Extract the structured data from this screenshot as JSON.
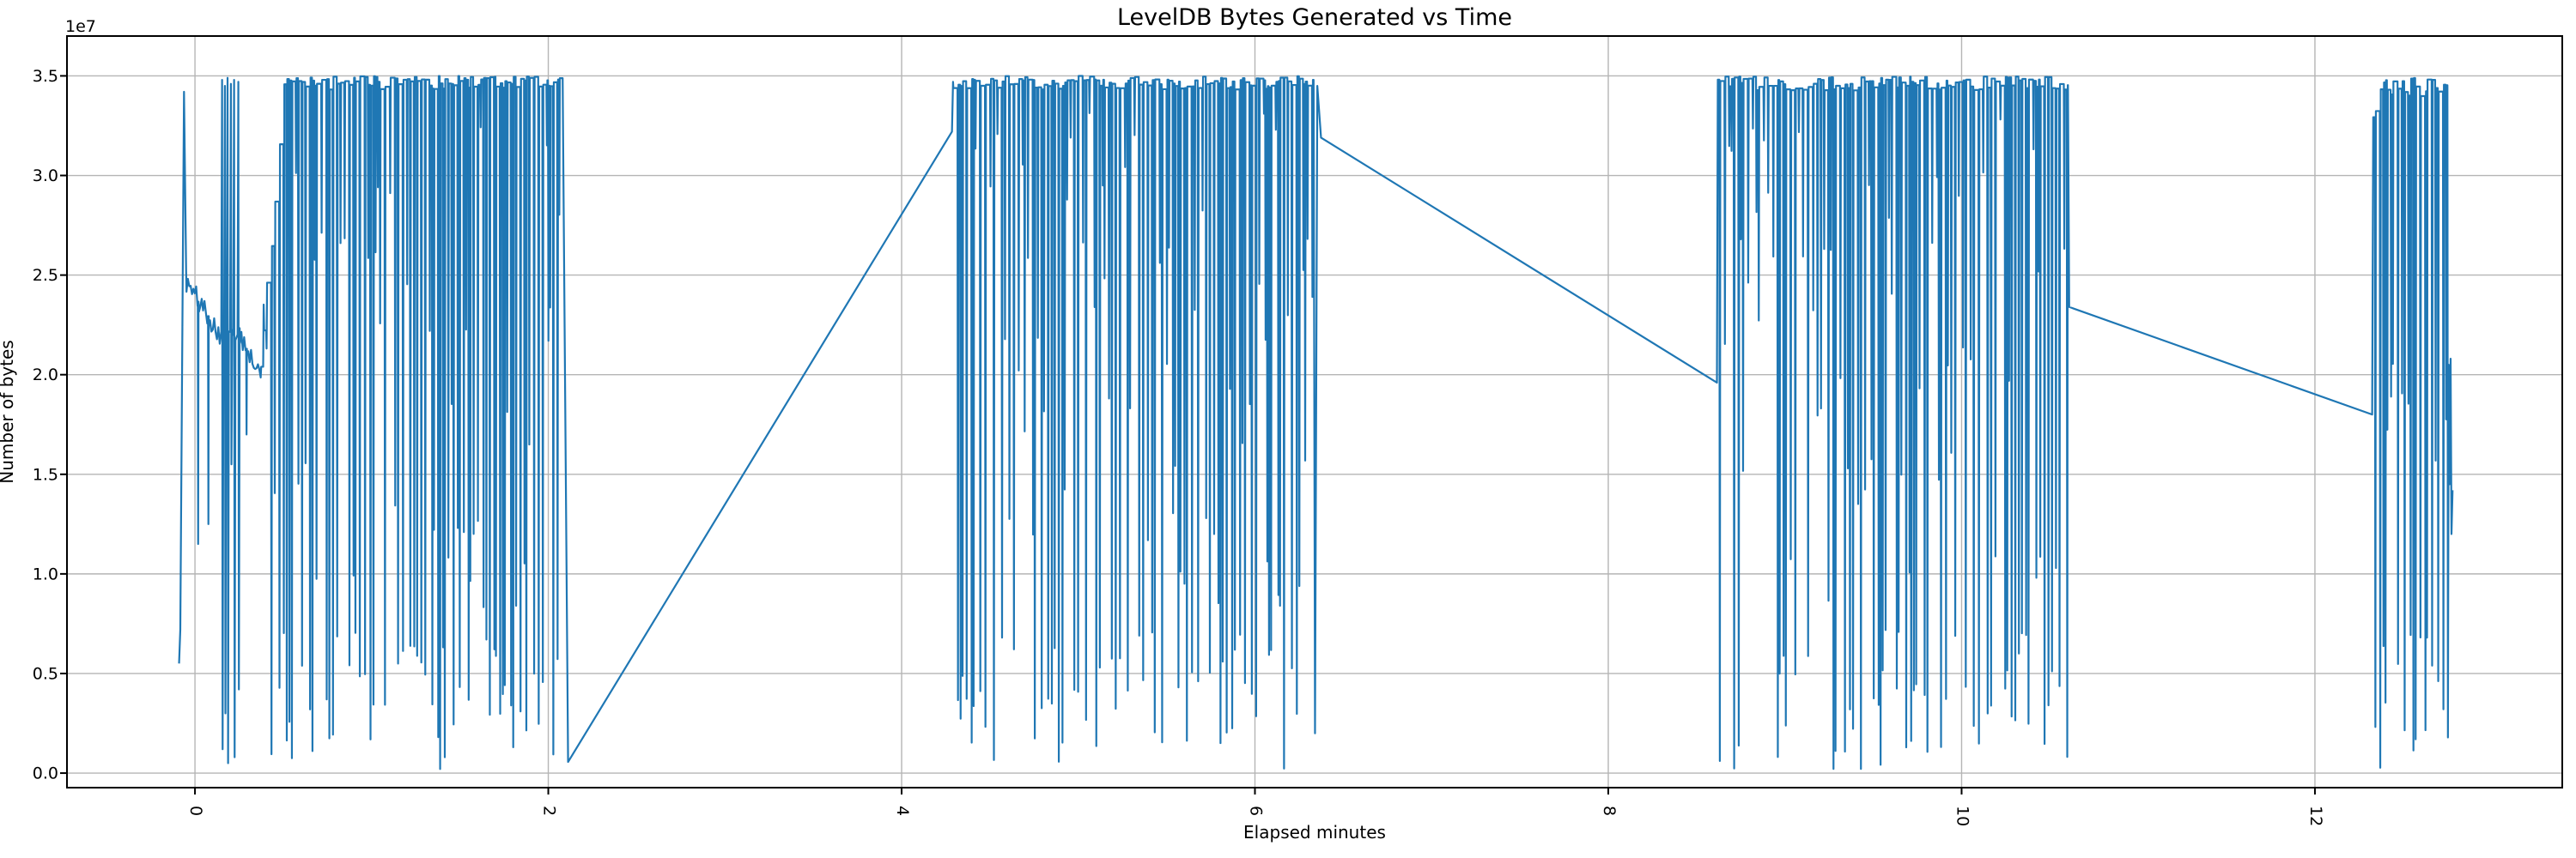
{
  "chart_data": {
    "type": "line",
    "title": "LevelDB Bytes Generated vs Time",
    "xlabel": "Elapsed minutes",
    "ylabel": "Number of bytes",
    "y_offset_text": "1e7",
    "line_color": "#1f77b4",
    "grid_color": "#b5b5b5",
    "spine_color": "#000000",
    "xlim": [
      -0.7245,
      13.4
    ],
    "ylim": [
      -730000,
      37000000
    ],
    "x_ticks": {
      "values": [
        0,
        2,
        4,
        6,
        8,
        10,
        12
      ],
      "labels": [
        "0",
        "2",
        "4",
        "6",
        "8",
        "10",
        "12"
      ]
    },
    "y_ticks": {
      "values": [
        0,
        5000000,
        10000000,
        15000000,
        20000000,
        25000000,
        30000000,
        35000000
      ],
      "labels": [
        "0.0",
        "0.5",
        "1.0",
        "1.5",
        "2.0",
        "2.5",
        "3.0",
        "3.5"
      ]
    },
    "series_name": "bytes_generated",
    "segments": [
      {
        "kind": "poly",
        "points": [
          [
            -0.09,
            5500000
          ],
          [
            -0.083,
            7200000
          ],
          [
            -0.062,
            34200000
          ],
          [
            -0.05,
            25200000
          ]
        ]
      },
      {
        "kind": "noise",
        "x0": -0.048,
        "x1": 0.148,
        "y0": 24600000,
        "y1": 22000000,
        "amp": 600000,
        "step": 0.008,
        "seed": 101,
        "dips": [
          [
            0.018,
            11500000
          ],
          [
            0.076,
            12500000
          ]
        ]
      },
      {
        "kind": "spikes",
        "base": 22000000,
        "seed": 102,
        "spikes": [
          [
            0.155,
            34800000,
            1200000
          ],
          [
            0.171,
            34500000,
            3000000
          ],
          [
            0.186,
            34900000,
            500000
          ],
          [
            0.205,
            34600000,
            15500000
          ],
          [
            0.223,
            34800000,
            800000
          ],
          [
            0.247,
            34700000,
            4200000
          ]
        ]
      },
      {
        "kind": "noise",
        "x0": 0.255,
        "x1": 0.372,
        "y0": 21800000,
        "y1": 20300000,
        "amp": 500000,
        "step": 0.008,
        "seed": 103,
        "dips": [
          [
            0.292,
            17000000
          ]
        ]
      },
      {
        "kind": "burst",
        "x0": 0.375,
        "x1": 2.085,
        "top": 34650000,
        "jitter": 350000,
        "step": 0.008,
        "seed": 201,
        "ramp": {
          "from": 20500000,
          "len": 0.13
        }
      },
      {
        "kind": "poly",
        "points": [
          [
            2.112,
            560000
          ],
          [
            4.285,
            32200000
          ],
          [
            4.291,
            34700000
          ]
        ]
      },
      {
        "kind": "burst",
        "x0": 4.293,
        "x1": 6.332,
        "top": 34650000,
        "jitter": 350000,
        "step": 0.008,
        "seed": 202
      },
      {
        "kind": "poly",
        "points": [
          [
            6.34,
            2000000
          ],
          [
            6.353,
            34500000
          ],
          [
            6.374,
            31900000
          ],
          [
            8.615,
            19600000
          ]
        ]
      },
      {
        "kind": "burst",
        "x0": 8.62,
        "x1": 10.602,
        "top": 34620000,
        "jitter": 350000,
        "step": 0.008,
        "seed": 203
      },
      {
        "kind": "poly",
        "points": [
          [
            10.609,
            23400000
          ],
          [
            12.324,
            18000000
          ]
        ]
      },
      {
        "kind": "burst",
        "x0": 12.33,
        "x1": 12.752,
        "top": 34400000,
        "jitter": 600000,
        "step": 0.008,
        "seed": 204,
        "ramp": {
          "from": 33000000,
          "len": 0.05
        }
      },
      {
        "kind": "poly",
        "points": [
          [
            12.757,
            20500000
          ],
          [
            12.762,
            14500000
          ],
          [
            12.768,
            20800000
          ],
          [
            12.773,
            12000000
          ],
          [
            12.779,
            14200000
          ]
        ]
      }
    ]
  }
}
